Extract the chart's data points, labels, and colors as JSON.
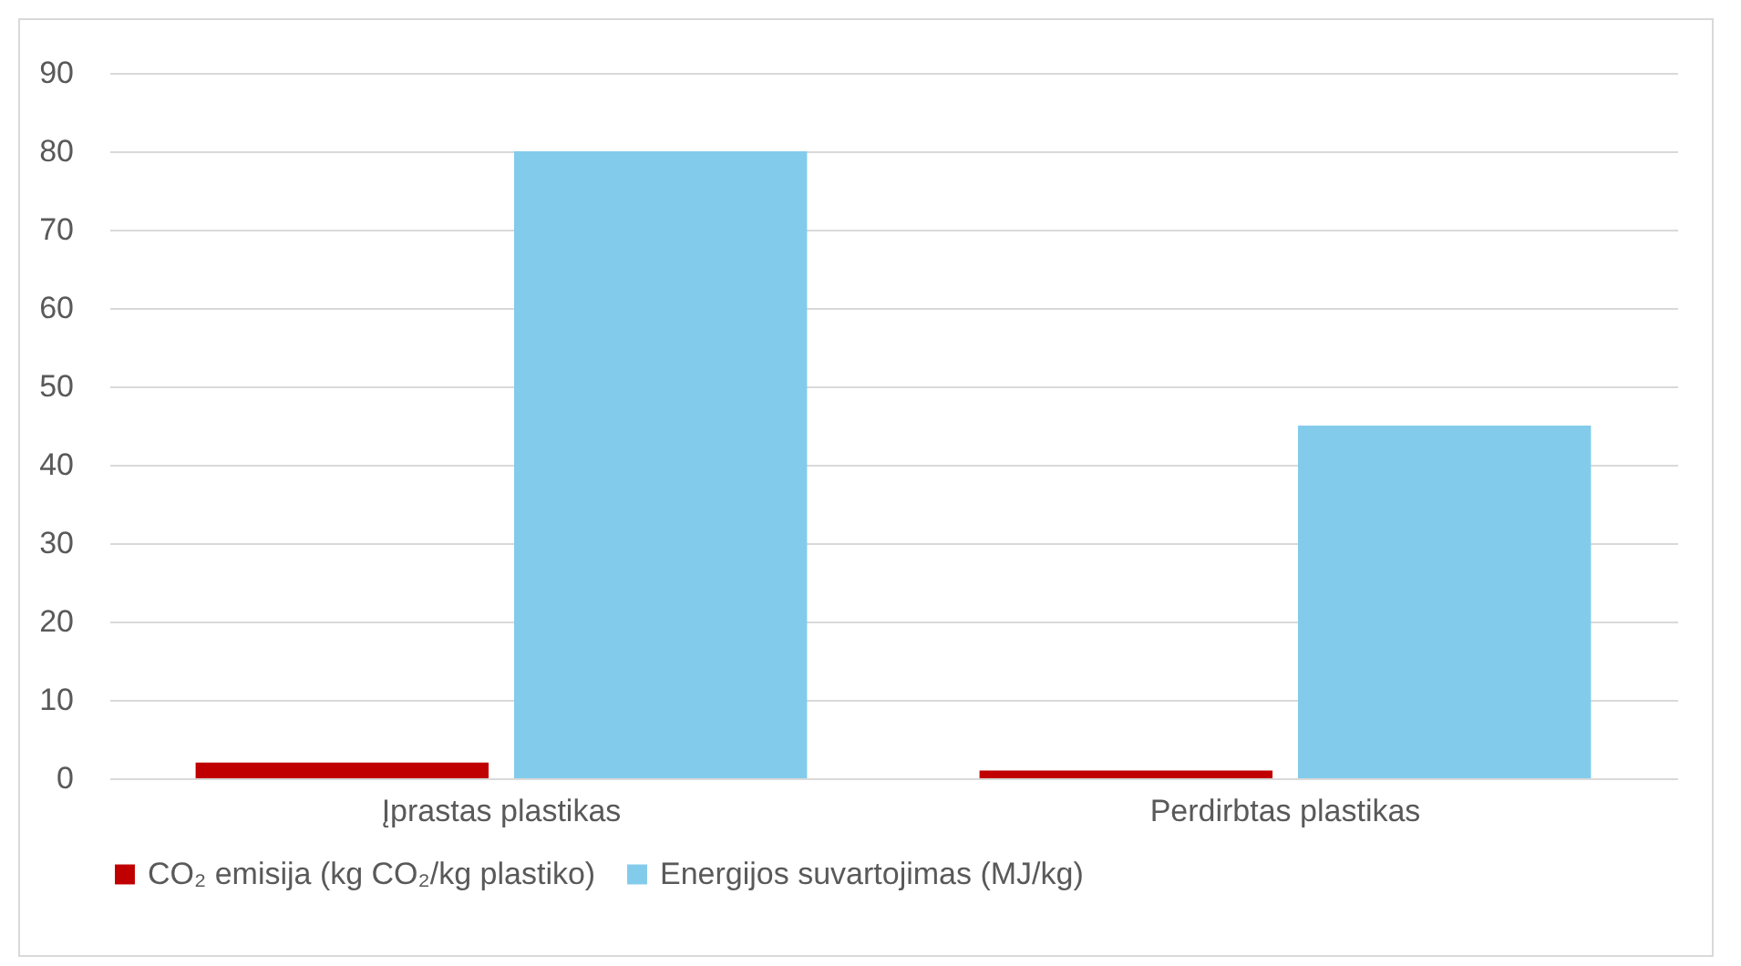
{
  "chart_data": {
    "type": "bar",
    "categories": [
      "Įprastas plastikas",
      "Perdirbtas plastikas"
    ],
    "series": [
      {
        "name": "CO₂ emisija (kg CO₂/kg plastiko)",
        "color": "#c00000",
        "values": [
          2,
          1
        ]
      },
      {
        "name": "Energijos suvartojimas (MJ/kg)",
        "color": "#83cbeb",
        "values": [
          80,
          45
        ]
      }
    ],
    "ylim": [
      0,
      90
    ],
    "yticks": [
      0,
      10,
      20,
      30,
      40,
      50,
      60,
      70,
      80,
      90
    ],
    "grid": "y",
    "legend": "bottom"
  }
}
